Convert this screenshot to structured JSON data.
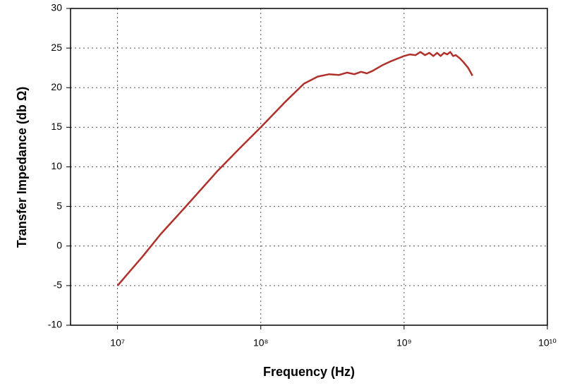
{
  "chart_data": {
    "type": "line",
    "xlabel": "Frequency (Hz)",
    "ylabel": "Transfer Impedance (db Ω)",
    "xscale": "log",
    "grid": true,
    "xlim": [
      4700000,
      10000000000
    ],
    "xticks": [
      {
        "value": 10000000,
        "label": "10⁷"
      },
      {
        "value": 100000000,
        "label": "10⁸"
      },
      {
        "value": 1000000000,
        "label": "10⁹"
      },
      {
        "value": 10000000000,
        "label": "10¹⁰"
      }
    ],
    "ylim": [
      -10,
      30
    ],
    "yticks": [
      -10,
      -5,
      0,
      5,
      10,
      15,
      20,
      25,
      30
    ],
    "x": [
      10000000,
      15000000,
      20000000,
      30000000,
      50000000,
      70000000,
      100000000,
      150000000,
      200000000,
      250000000,
      300000000,
      350000000,
      400000000,
      450000000,
      500000000,
      550000000,
      600000000,
      700000000,
      800000000,
      1000000000,
      1100000000,
      1200000000,
      1300000000,
      1400000000,
      1500000000,
      1600000000,
      1700000000,
      1800000000,
      1900000000,
      2000000000,
      2100000000,
      2200000000,
      2300000000,
      2450000000,
      2600000000,
      2800000000,
      3000000000
    ],
    "series": [
      {
        "name": "Transfer Impedance",
        "color": "#b0302a",
        "values": [
          -5,
          -1.3,
          1.5,
          5,
          9.5,
          12.2,
          15,
          18.3,
          20.5,
          21.4,
          21.7,
          21.6,
          21.9,
          21.7,
          22,
          21.8,
          22.1,
          22.8,
          23.3,
          24,
          24.2,
          24.1,
          24.5,
          24.1,
          24.4,
          24.0,
          24.4,
          24.0,
          24.4,
          24.2,
          24.5,
          24.0,
          24.1,
          23.7,
          23.2,
          22.5,
          21.5
        ]
      }
    ]
  }
}
